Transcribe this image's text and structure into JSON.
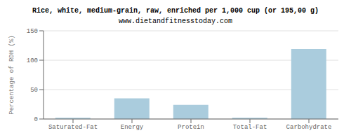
{
  "chart_data": {
    "type": "bar",
    "title": "Rice, white, medium-grain, raw, enriched per 1,000 cup (or 195,00 g)",
    "subtitle": "www.dietandfitnesstoday.com",
    "categories": [
      "Saturated-Fat",
      "Energy",
      "Protein",
      "Total-Fat",
      "Carbohydrate"
    ],
    "values": [
      2,
      35,
      24,
      2,
      119
    ],
    "color": "#aaccdd",
    "ylabel": "Percentage of RDH (%)",
    "ylim": [
      0,
      150
    ],
    "yticks": [
      0,
      50,
      100,
      150
    ],
    "grid": true
  }
}
